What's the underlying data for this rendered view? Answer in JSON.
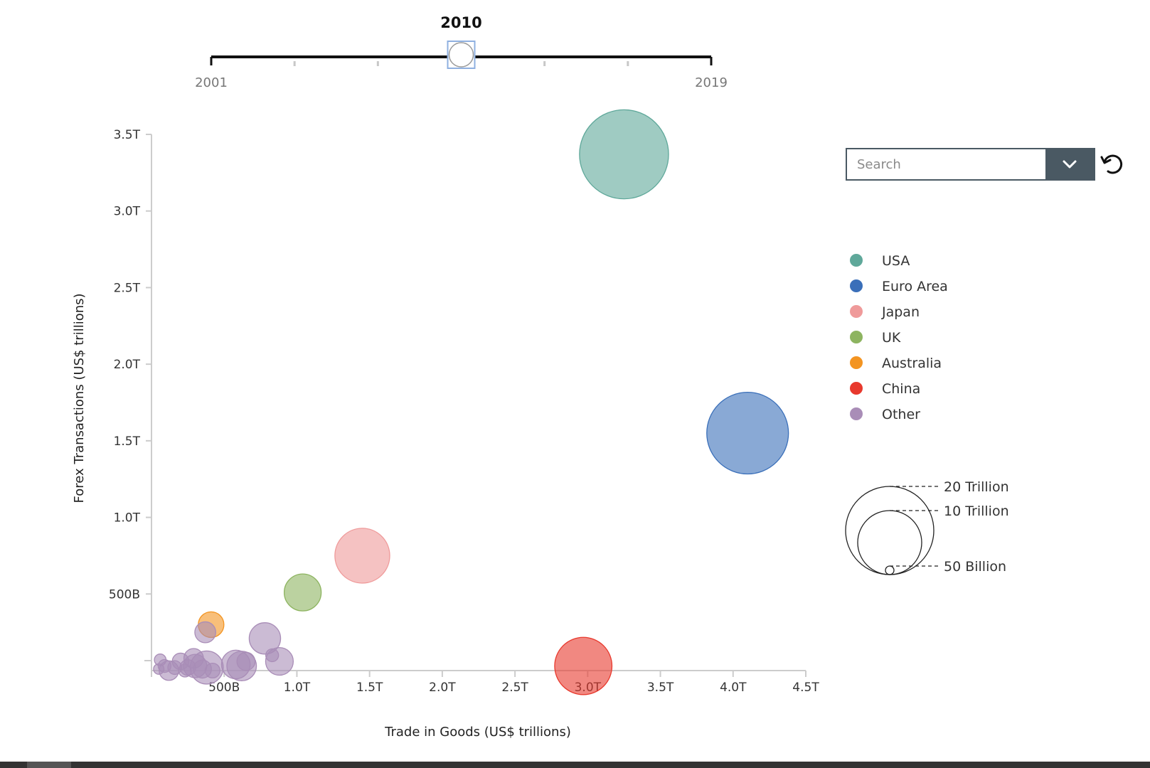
{
  "slider": {
    "current_year": "2010",
    "start_year": "2001",
    "end_year": "2019",
    "value": 2010,
    "min": 2001,
    "max": 2019
  },
  "search": {
    "placeholder": "Search"
  },
  "legend": {
    "items": [
      {
        "label": "USA",
        "color": "#5fa89a"
      },
      {
        "label": "Euro Area",
        "color": "#3a6fb9"
      },
      {
        "label": "Japan",
        "color": "#ef9a9a"
      },
      {
        "label": "UK",
        "color": "#8db460"
      },
      {
        "label": "Australia",
        "color": "#f39421"
      },
      {
        "label": "China",
        "color": "#e8392d"
      },
      {
        "label": "Other",
        "color": "#a98db7"
      }
    ],
    "size_labels": [
      "20 Trillion",
      "10 Trillion",
      "50 Billion"
    ]
  },
  "chart_data": {
    "type": "scatter",
    "xlabel": "Trade in Goods (US$ trillions)",
    "ylabel": "Forex Transactions (US$ trillions)",
    "xlim": [
      0,
      4.5
    ],
    "ylim": [
      0,
      3.5
    ],
    "x_ticks": [
      {
        "value": 0.5,
        "label": "500B"
      },
      {
        "value": 1.0,
        "label": "1.0T"
      },
      {
        "value": 1.5,
        "label": "1.5T"
      },
      {
        "value": 2.0,
        "label": "2.0T"
      },
      {
        "value": 2.5,
        "label": "2.5T"
      },
      {
        "value": 3.0,
        "label": "3.0T"
      },
      {
        "value": 3.5,
        "label": "3.5T"
      },
      {
        "value": 4.0,
        "label": "4.0T"
      },
      {
        "value": 4.5,
        "label": "4.5T"
      }
    ],
    "y_ticks": [
      {
        "value": 0.5,
        "label": "500B"
      },
      {
        "value": 1.0,
        "label": "1.0T"
      },
      {
        "value": 1.5,
        "label": "1.5T"
      },
      {
        "value": 2.0,
        "label": "2.0T"
      },
      {
        "value": 2.5,
        "label": "2.5T"
      },
      {
        "value": 3.0,
        "label": "3.0T"
      },
      {
        "value": 3.5,
        "label": "3.5T"
      }
    ],
    "size_legend": [
      {
        "label": "20 Trillion",
        "value": 20000
      },
      {
        "label": "10 Trillion",
        "value": 10000
      },
      {
        "label": "50 Billion",
        "value": 50
      }
    ],
    "points": [
      {
        "group": "USA",
        "x": 3.25,
        "y": 3.37,
        "size": 14500
      },
      {
        "group": "Euro Area",
        "x": 4.1,
        "y": 1.55,
        "size": 12200
      },
      {
        "group": "Japan",
        "x": 1.45,
        "y": 0.75,
        "size": 5500
      },
      {
        "group": "UK",
        "x": 1.04,
        "y": 0.51,
        "size": 2500
      },
      {
        "group": "Australia",
        "x": 0.41,
        "y": 0.3,
        "size": 1200
      },
      {
        "group": "China",
        "x": 2.97,
        "y": 0.03,
        "size": 6000
      },
      {
        "group": "Other",
        "x": 0.78,
        "y": 0.21,
        "size": 1800
      },
      {
        "group": "Other",
        "x": 0.37,
        "y": 0.25,
        "size": 800
      },
      {
        "group": "Other",
        "x": 0.88,
        "y": 0.06,
        "size": 1400
      },
      {
        "group": "Other",
        "x": 0.83,
        "y": 0.1,
        "size": 300
      },
      {
        "group": "Other",
        "x": 0.58,
        "y": 0.04,
        "size": 1500
      },
      {
        "group": "Other",
        "x": 0.62,
        "y": 0.03,
        "size": 1600
      },
      {
        "group": "Other",
        "x": 0.65,
        "y": 0.06,
        "size": 600
      },
      {
        "group": "Other",
        "x": 0.38,
        "y": 0.02,
        "size": 2000
      },
      {
        "group": "Other",
        "x": 0.3,
        "y": 0.03,
        "size": 1000
      },
      {
        "group": "Other",
        "x": 0.29,
        "y": 0.08,
        "size": 700
      },
      {
        "group": "Other",
        "x": 0.35,
        "y": 0.01,
        "size": 600
      },
      {
        "group": "Other",
        "x": 0.25,
        "y": 0.02,
        "size": 450
      },
      {
        "group": "Other",
        "x": 0.2,
        "y": 0.06,
        "size": 500
      },
      {
        "group": "Other",
        "x": 0.12,
        "y": 0.0,
        "size": 700
      },
      {
        "group": "Other",
        "x": 0.09,
        "y": 0.03,
        "size": 300
      },
      {
        "group": "Other",
        "x": 0.06,
        "y": 0.07,
        "size": 250
      },
      {
        "group": "Other",
        "x": 0.05,
        "y": 0.01,
        "size": 200
      },
      {
        "group": "Other",
        "x": 0.16,
        "y": 0.02,
        "size": 350
      },
      {
        "group": "Other",
        "x": 0.42,
        "y": 0.0,
        "size": 400
      },
      {
        "group": "Other",
        "x": 0.23,
        "y": 0.0,
        "size": 300
      }
    ]
  }
}
